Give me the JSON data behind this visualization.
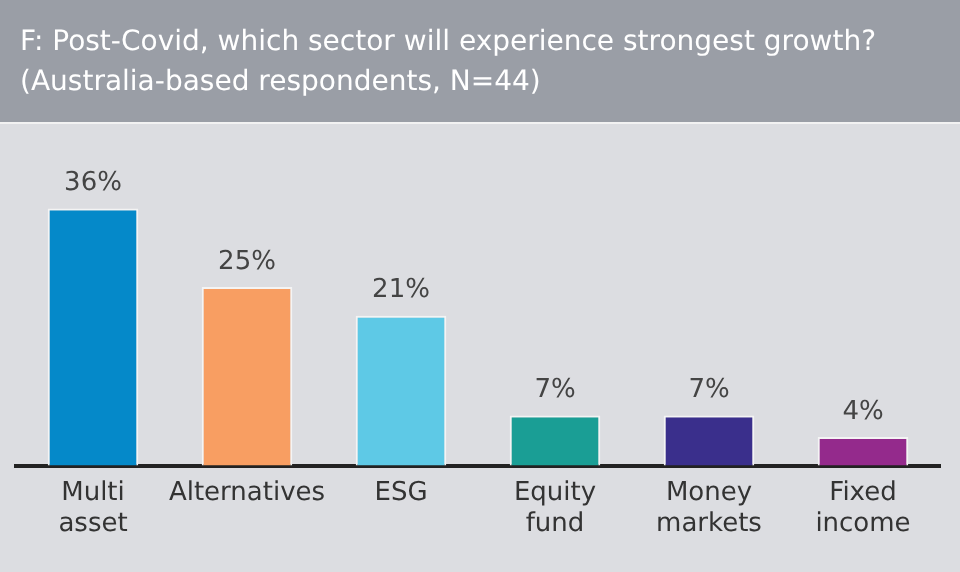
{
  "chart_data": {
    "type": "bar",
    "title": "F: Post-Covid, which sector will experience strongest growth?",
    "subtitle": "(Australia-based respondents, N=44)",
    "categories": [
      "Multi asset",
      "Alternatives",
      "ESG",
      "Equity fund",
      "Money markets",
      "Fixed income"
    ],
    "values": [
      36,
      25,
      21,
      7,
      7,
      4
    ],
    "value_labels": [
      "36%",
      "25%",
      "21%",
      "7%",
      "7%",
      "4%"
    ],
    "colors": [
      "#0589c9",
      "#f89e62",
      "#5ec9e6",
      "#1a9e95",
      "#3a2f8c",
      "#942a8c"
    ],
    "tick_labels": "x",
    "grid": false,
    "legend": false
  }
}
